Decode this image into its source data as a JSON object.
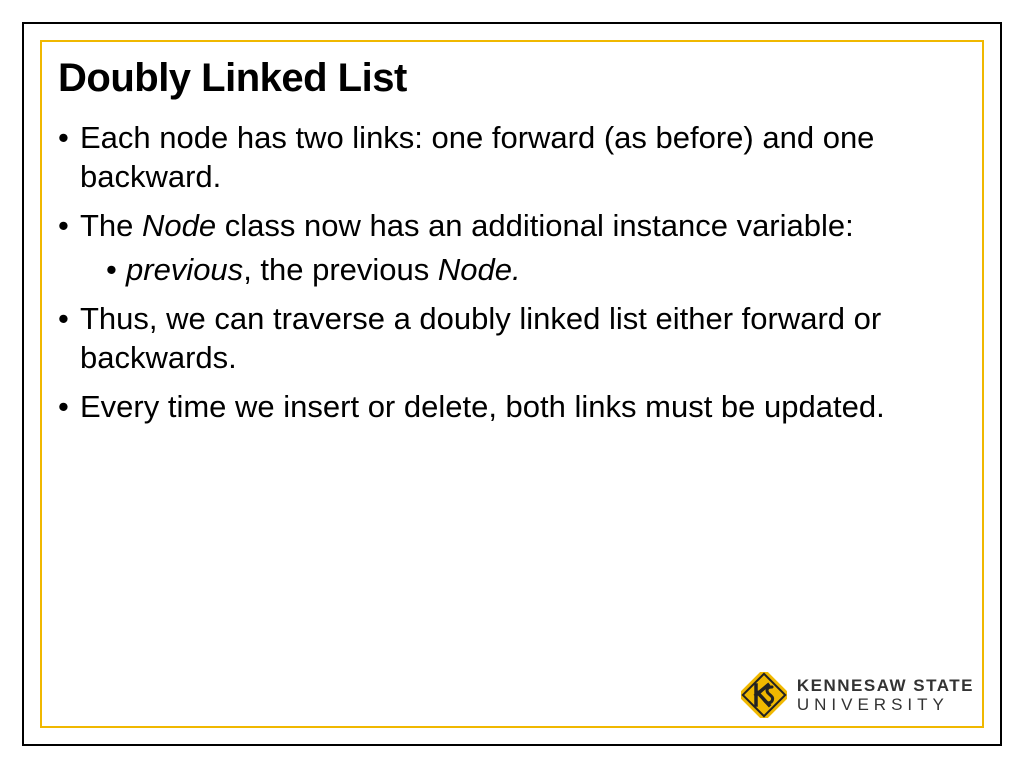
{
  "slide": {
    "title": "Doubly Linked List",
    "bullets": [
      {
        "segments": [
          {
            "text": "Each node has two links: one forward (as before) and one backward.",
            "italic": false
          }
        ]
      },
      {
        "segments": [
          {
            "text": "The ",
            "italic": false
          },
          {
            "text": "Node",
            "italic": true
          },
          {
            "text": " class now has an additional instance variable:",
            "italic": false
          }
        ],
        "sub": [
          {
            "segments": [
              {
                "text": "previous",
                "italic": true
              },
              {
                "text": ", the previous ",
                "italic": false
              },
              {
                "text": "Node.",
                "italic": true
              }
            ]
          }
        ]
      },
      {
        "segments": [
          {
            "text": "Thus, we can traverse a doubly linked list either forward or backwards.",
            "italic": false
          }
        ]
      },
      {
        "segments": [
          {
            "text": "Every time we insert or delete, both links must be updated.",
            "italic": false
          }
        ]
      }
    ]
  },
  "logo": {
    "line1": "KENNESAW STATE",
    "line2": "UNIVERSITY",
    "colors": {
      "gold": "#f0b800",
      "dark": "#222222"
    }
  },
  "borders": {
    "outer_color": "#000000",
    "inner_color": "#f0b800"
  },
  "typography": {
    "title_fontsize": 40,
    "body_fontsize": 31,
    "font_family": "Arial"
  },
  "background_color": "#ffffff"
}
